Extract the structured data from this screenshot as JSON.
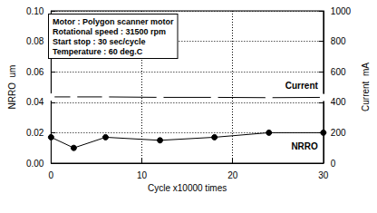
{
  "chart_data": {
    "type": "line",
    "annotations": [
      "Motor : Polygon scanner motor",
      "Rotational speed : 31500 rpm",
      "Start stop : 30 sec/cycle",
      "Temperature : 60 deg.C"
    ],
    "x_label": "Cycle x10000 times",
    "y_label": "NRRO  um",
    "y2_label": "Current  mA",
    "x": [
      0,
      2.5,
      6,
      12,
      18,
      24,
      30
    ],
    "xlim": [
      0,
      30
    ],
    "xticks": [
      0,
      10,
      20,
      30
    ],
    "ylim": [
      0,
      0.1
    ],
    "yticks": [
      {
        "value": 0,
        "label": "0.00"
      },
      {
        "value": 0.02,
        "label": "0.02"
      },
      {
        "value": 0.04,
        "label": "0.04"
      },
      {
        "value": 0.06,
        "label": "0.06"
      },
      {
        "value": 0.08,
        "label": "0.08"
      },
      {
        "value": 0.1,
        "label": "0.10"
      }
    ],
    "y2lim": [
      0,
      1000
    ],
    "y2ticks": [
      0,
      200,
      400,
      600,
      800,
      1000
    ],
    "grid": true,
    "series": [
      {
        "name": "Current",
        "axis": "y2",
        "color": "#000000",
        "marker": "open_circle",
        "line_style": "solid",
        "values": [
          435,
          435,
          435,
          432,
          432,
          430,
          432
        ]
      },
      {
        "name": "NRRO",
        "color": "#000000",
        "marker": "circle",
        "line_style": "solid",
        "values": [
          0.017,
          0.01,
          0.017,
          0.015,
          0.017,
          0.02,
          0.02
        ]
      }
    ]
  }
}
